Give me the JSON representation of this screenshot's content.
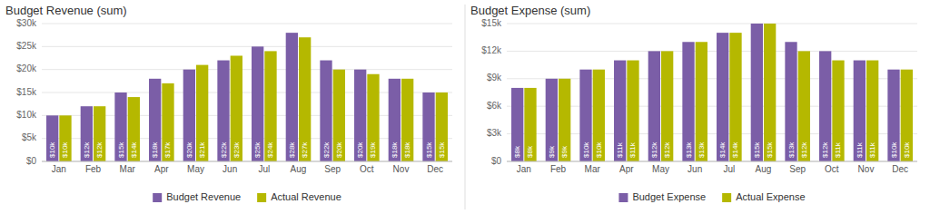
{
  "chart_data": [
    {
      "type": "bar",
      "title": "Budget Revenue (sum)",
      "categories": [
        "Jan",
        "Feb",
        "Mar",
        "Apr",
        "May",
        "Jun",
        "Jul",
        "Aug",
        "Sep",
        "Oct",
        "Nov",
        "Dec"
      ],
      "series": [
        {
          "name": "Budget Revenue",
          "color": "#7B5EA7",
          "values": [
            10000,
            12000,
            15000,
            18000,
            20000,
            22000,
            25000,
            28000,
            22000,
            20000,
            18000,
            15000
          ],
          "value_labels": [
            "$10k",
            "$12k",
            "$15k",
            "$18k",
            "$20k",
            "$22k",
            "$25k",
            "$28k",
            "$22k",
            "$20k",
            "$18k",
            "$15k"
          ]
        },
        {
          "name": "Actual Revenue",
          "color": "#B5B800",
          "values": [
            10000,
            12000,
            14000,
            17000,
            21000,
            23000,
            24000,
            27000,
            20000,
            19000,
            18000,
            15000
          ],
          "value_labels": [
            "$10k",
            "$12k",
            "$14k",
            "$17k",
            "$21k",
            "$23k",
            "$24k",
            "$27k",
            "$20k",
            "$19k",
            "$18k",
            "$15k"
          ]
        }
      ],
      "ylim": [
        0,
        30000
      ],
      "yticks": [
        {
          "value": 0,
          "label": "$0"
        },
        {
          "value": 5000,
          "label": "$5k"
        },
        {
          "value": 10000,
          "label": "$10k"
        },
        {
          "value": 15000,
          "label": "$15k"
        },
        {
          "value": 20000,
          "label": "$20k"
        },
        {
          "value": 25000,
          "label": "$25k"
        },
        {
          "value": 30000,
          "label": "$30k"
        }
      ],
      "grid": true,
      "legend": "bottom",
      "data_labels": true
    },
    {
      "type": "bar",
      "title": "Budget Expense (sum)",
      "categories": [
        "Jan",
        "Feb",
        "Mar",
        "Apr",
        "May",
        "Jun",
        "Jul",
        "Aug",
        "Sep",
        "Oct",
        "Nov",
        "Dec"
      ],
      "series": [
        {
          "name": "Budget Expense",
          "color": "#7B5EA7",
          "values": [
            8000,
            9000,
            10000,
            11000,
            12000,
            13000,
            14000,
            15000,
            13000,
            12000,
            11000,
            10000
          ],
          "value_labels": [
            "$8k",
            "$9k",
            "$10k",
            "$11k",
            "$12k",
            "$13k",
            "$14k",
            "$15k",
            "$13k",
            "$12k",
            "$11k",
            "$10k"
          ]
        },
        {
          "name": "Actual Expense",
          "color": "#B5B800",
          "values": [
            8000,
            9000,
            10000,
            11000,
            12000,
            13000,
            14000,
            15000,
            12000,
            11000,
            11000,
            10000
          ],
          "value_labels": [
            "$8k",
            "$9k",
            "$10k",
            "$11k",
            "$12k",
            "$13k",
            "$14k",
            "$15k",
            "$12k",
            "$11k",
            "$11k",
            "$10k"
          ]
        }
      ],
      "ylim": [
        0,
        15000
      ],
      "yticks": [
        {
          "value": 0,
          "label": "$0"
        },
        {
          "value": 3000,
          "label": "$3k"
        },
        {
          "value": 6000,
          "label": "$6k"
        },
        {
          "value": 9000,
          "label": "$9k"
        },
        {
          "value": 12000,
          "label": "$12k"
        },
        {
          "value": 15000,
          "label": "$15k"
        }
      ],
      "grid": true,
      "legend": "bottom",
      "data_labels": true
    }
  ]
}
